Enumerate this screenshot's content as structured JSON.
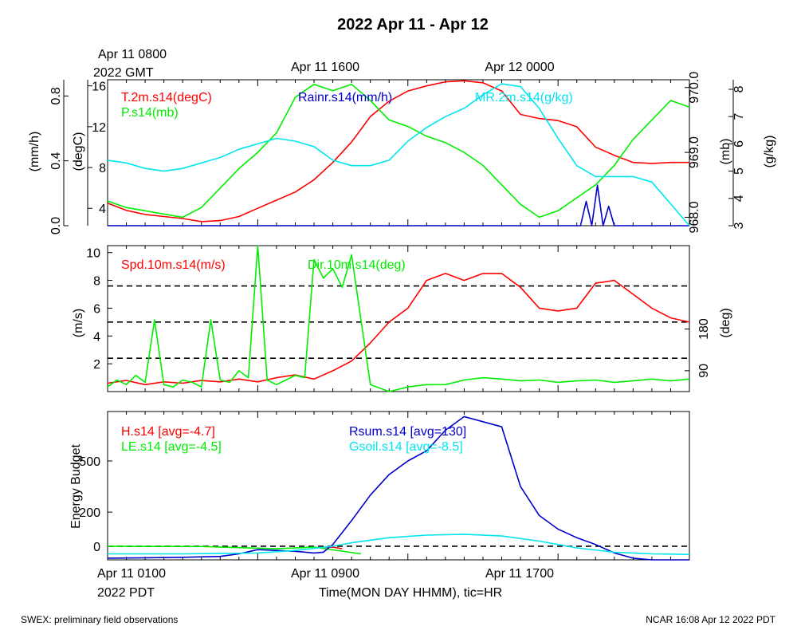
{
  "title": "2022 Apr 11 - Apr 12",
  "footer_left": "SWEX: preliminary field observations",
  "footer_right": "NCAR 16:08 Apr 12 2022 PDT",
  "top_axis": {
    "date_line1": "Apr 11 0800",
    "date_line2": "2022 GMT",
    "ticks": [
      "Apr 11 1600",
      "Apr 12 0000"
    ]
  },
  "bottom_axis": {
    "date_line1": "Apr 11 0100",
    "date_line2": "2022 PDT",
    "ticks": [
      "Apr 11 0900",
      "Apr 11 1700"
    ],
    "label": "Time(MON DAY HHMM), tic=HR"
  },
  "colors": {
    "red": "#ff0000",
    "green": "#00ee00",
    "blue": "#0000cc",
    "cyan": "#00e5ee",
    "black": "#000000"
  },
  "chart_data": [
    {
      "type": "line",
      "panel": "top",
      "x_unit": "hours since Apr 11 0100 PDT",
      "xlim": [
        0,
        31
      ],
      "axes": {
        "rain": {
          "label": "(mm/h)",
          "ylim": [
            0,
            0.9
          ],
          "ticks": [
            "0.0",
            "0.4",
            "0.8"
          ]
        },
        "temp": {
          "label": "(degC)",
          "ylim": [
            2.3,
            16.6
          ],
          "ticks": [
            "4",
            "8",
            "12",
            "16"
          ]
        },
        "pres": {
          "label": "(mb)",
          "ylim": [
            967.87,
            970.12
          ],
          "ticks": [
            "968.0",
            "969.0",
            "970.0"
          ]
        },
        "mr": {
          "label": "(g/kg)",
          "ylim": [
            3,
            8.35
          ],
          "ticks": [
            "3",
            "4",
            "5",
            "6",
            "7",
            "8"
          ]
        }
      },
      "series": [
        {
          "name": "T.2m.s14(degC)",
          "color": "red",
          "axis": "temp",
          "x": [
            0,
            1,
            2,
            3,
            4,
            5,
            6,
            7,
            8,
            9,
            10,
            11,
            12,
            13,
            14,
            15,
            16,
            17,
            18,
            19,
            20,
            21,
            22,
            23,
            24,
            25,
            26,
            27,
            28,
            29,
            30,
            31
          ],
          "y": [
            4.5,
            3.8,
            3.4,
            3.2,
            3.0,
            2.7,
            2.8,
            3.2,
            4.0,
            4.8,
            5.6,
            6.8,
            8.5,
            10.5,
            13.0,
            14.5,
            15.5,
            16.0,
            16.4,
            16.5,
            16.3,
            15.5,
            13.2,
            12.8,
            12.6,
            12.0,
            10.0,
            9.2,
            8.5,
            8.4,
            8.5,
            8.5
          ]
        },
        {
          "name": "P.s14(mb)",
          "color": "green",
          "axis": "pres",
          "x": [
            0,
            1,
            2,
            3,
            4,
            5,
            6,
            7,
            8,
            9,
            10,
            11,
            12,
            13,
            14,
            15,
            16,
            17,
            18,
            19,
            20,
            21,
            22,
            23,
            24,
            25,
            26,
            27,
            28,
            29,
            30,
            31
          ],
          "y": [
            968.25,
            968.15,
            968.1,
            968.05,
            968.0,
            968.15,
            968.45,
            968.75,
            969.0,
            969.3,
            969.85,
            970.05,
            969.95,
            970.05,
            969.8,
            969.5,
            969.4,
            969.25,
            969.15,
            969.0,
            968.8,
            968.5,
            968.2,
            968.0,
            968.1,
            968.3,
            968.5,
            968.8,
            969.2,
            969.5,
            969.8,
            969.7
          ]
        },
        {
          "name": "Rainr.s14(mm/h)",
          "color": "blue",
          "axis": "rain",
          "x": [
            0,
            24,
            25.2,
            25.5,
            25.8,
            26.1,
            26.4,
            26.7,
            27,
            27.5,
            28.3,
            28.6,
            28.9,
            29.2,
            29.5,
            29.8,
            30.1,
            31
          ],
          "y": [
            0,
            0,
            0,
            0.15,
            0.0,
            0.25,
            0.0,
            0.12,
            0.0,
            0.0,
            0,
            0,
            0,
            0,
            0,
            0,
            0,
            0
          ]
        },
        {
          "name": "MR.2m.s14(g/kg)",
          "color": "cyan",
          "axis": "mr",
          "x": [
            0,
            1,
            2,
            3,
            4,
            5,
            6,
            7,
            8,
            9,
            10,
            11,
            12,
            13,
            14,
            15,
            16,
            17,
            18,
            19,
            20,
            21,
            22,
            23,
            24,
            25,
            26,
            27,
            28,
            29,
            30,
            31
          ],
          "y": [
            5.4,
            5.3,
            5.1,
            5.0,
            5.1,
            5.3,
            5.5,
            5.8,
            6.0,
            6.2,
            6.1,
            5.9,
            5.4,
            5.2,
            5.2,
            5.4,
            6.1,
            6.6,
            7.0,
            7.3,
            7.8,
            8.2,
            8.1,
            7.3,
            6.2,
            5.2,
            4.8,
            4.8,
            4.8,
            4.6,
            3.8,
            3.0
          ]
        }
      ]
    },
    {
      "type": "line",
      "panel": "middle",
      "x_unit": "hours since Apr 11 0100 PDT",
      "xlim": [
        0,
        31
      ],
      "axes": {
        "spd": {
          "label": "(m/s)",
          "ylim": [
            0,
            10.5
          ],
          "ticks": [
            "2",
            "4",
            "6",
            "8",
            "10"
          ]
        },
        "dir": {
          "label": "(deg)",
          "ylim": [
            45,
            360
          ],
          "ticks": [
            "90",
            "180"
          ]
        }
      },
      "reference_lines": [
        2.4,
        5.0,
        7.6
      ],
      "series": [
        {
          "name": "Spd.10m.s14(m/s)",
          "color": "red",
          "axis": "spd",
          "x": [
            0,
            1,
            2,
            3,
            4,
            5,
            6,
            7,
            8,
            9,
            10,
            11,
            12,
            13,
            14,
            15,
            16,
            17,
            18,
            19,
            20,
            21,
            22,
            23,
            24,
            25,
            26,
            27,
            28,
            29,
            30,
            31
          ],
          "y": [
            0.6,
            0.8,
            0.5,
            0.7,
            0.6,
            0.8,
            0.7,
            0.9,
            0.7,
            1.0,
            1.2,
            0.9,
            1.5,
            2.2,
            3.5,
            5.0,
            6.0,
            8.0,
            8.5,
            8.0,
            8.5,
            8.5,
            7.5,
            6.0,
            5.8,
            6.0,
            7.8,
            8.0,
            7.0,
            6.0,
            5.3,
            5.0
          ]
        },
        {
          "name": "Dir.10m.s14(deg)",
          "color": "green",
          "axis": "dir",
          "x": [
            0,
            0.5,
            1,
            1.5,
            2,
            2.5,
            3,
            3.5,
            4,
            4.5,
            5,
            5.5,
            6,
            6.5,
            7,
            7.5,
            8,
            8.5,
            9,
            9.5,
            10,
            10.5,
            11,
            11.5,
            12,
            12.5,
            13,
            14,
            15,
            16,
            17,
            18,
            19,
            20,
            21,
            22,
            23,
            24,
            25,
            26,
            27,
            28,
            29,
            30,
            31
          ],
          "y": [
            55,
            70,
            60,
            80,
            65,
            200,
            60,
            55,
            70,
            65,
            55,
            200,
            70,
            65,
            90,
            75,
            360,
            70,
            60,
            70,
            80,
            75,
            330,
            290,
            310,
            270,
            340,
            60,
            45,
            55,
            60,
            60,
            70,
            75,
            72,
            68,
            70,
            65,
            68,
            70,
            65,
            68,
            72,
            68,
            72
          ]
        }
      ]
    },
    {
      "type": "line",
      "panel": "bottom",
      "x_unit": "hours since Apr 11 0100 PDT",
      "xlim": [
        0,
        31
      ],
      "axes": {
        "energy": {
          "label": "Energy Budget",
          "ylim": [
            -80,
            790
          ],
          "ticks": [
            "0",
            "200",
            "500"
          ]
        }
      },
      "reference_lines": [
        0
      ],
      "series": [
        {
          "name": "H.s14 [avg=-4.7]",
          "color": "red",
          "axis": "energy",
          "x": [
            11.5,
            12,
            12.5
          ],
          "y": [
            -8,
            -5,
            -15
          ]
        },
        {
          "name": "LE.s14 [avg=-4.5]",
          "color": "green",
          "axis": "energy",
          "x": [
            0,
            5,
            9,
            11,
            13.5
          ],
          "y": [
            0,
            -2,
            -15,
            -5,
            -45
          ]
        },
        {
          "name": "Rsum.s14 [avg=130]",
          "color": "blue",
          "axis": "energy",
          "x": [
            0,
            2,
            4,
            6,
            7,
            8,
            9,
            10,
            11,
            11.5,
            12,
            13,
            14,
            15,
            16,
            17,
            18,
            19,
            20,
            21,
            22,
            23,
            24,
            25,
            26,
            27,
            28,
            29,
            30,
            31
          ],
          "y": [
            -70,
            -68,
            -65,
            -60,
            -45,
            -20,
            -25,
            -30,
            -40,
            -35,
            10,
            150,
            300,
            420,
            500,
            560,
            680,
            760,
            730,
            700,
            350,
            180,
            100,
            50,
            10,
            -40,
            -70,
            -80,
            -80,
            -80
          ]
        },
        {
          "name": "Gsoil.s14 [avg=-8.5]",
          "color": "cyan",
          "axis": "energy",
          "x": [
            0,
            4,
            8,
            10,
            12,
            13,
            15,
            17,
            19,
            21,
            23,
            25,
            27,
            29,
            31
          ],
          "y": [
            -45,
            -45,
            -40,
            -25,
            0,
            20,
            50,
            65,
            70,
            60,
            30,
            -10,
            -35,
            -45,
            -48
          ]
        }
      ]
    }
  ]
}
